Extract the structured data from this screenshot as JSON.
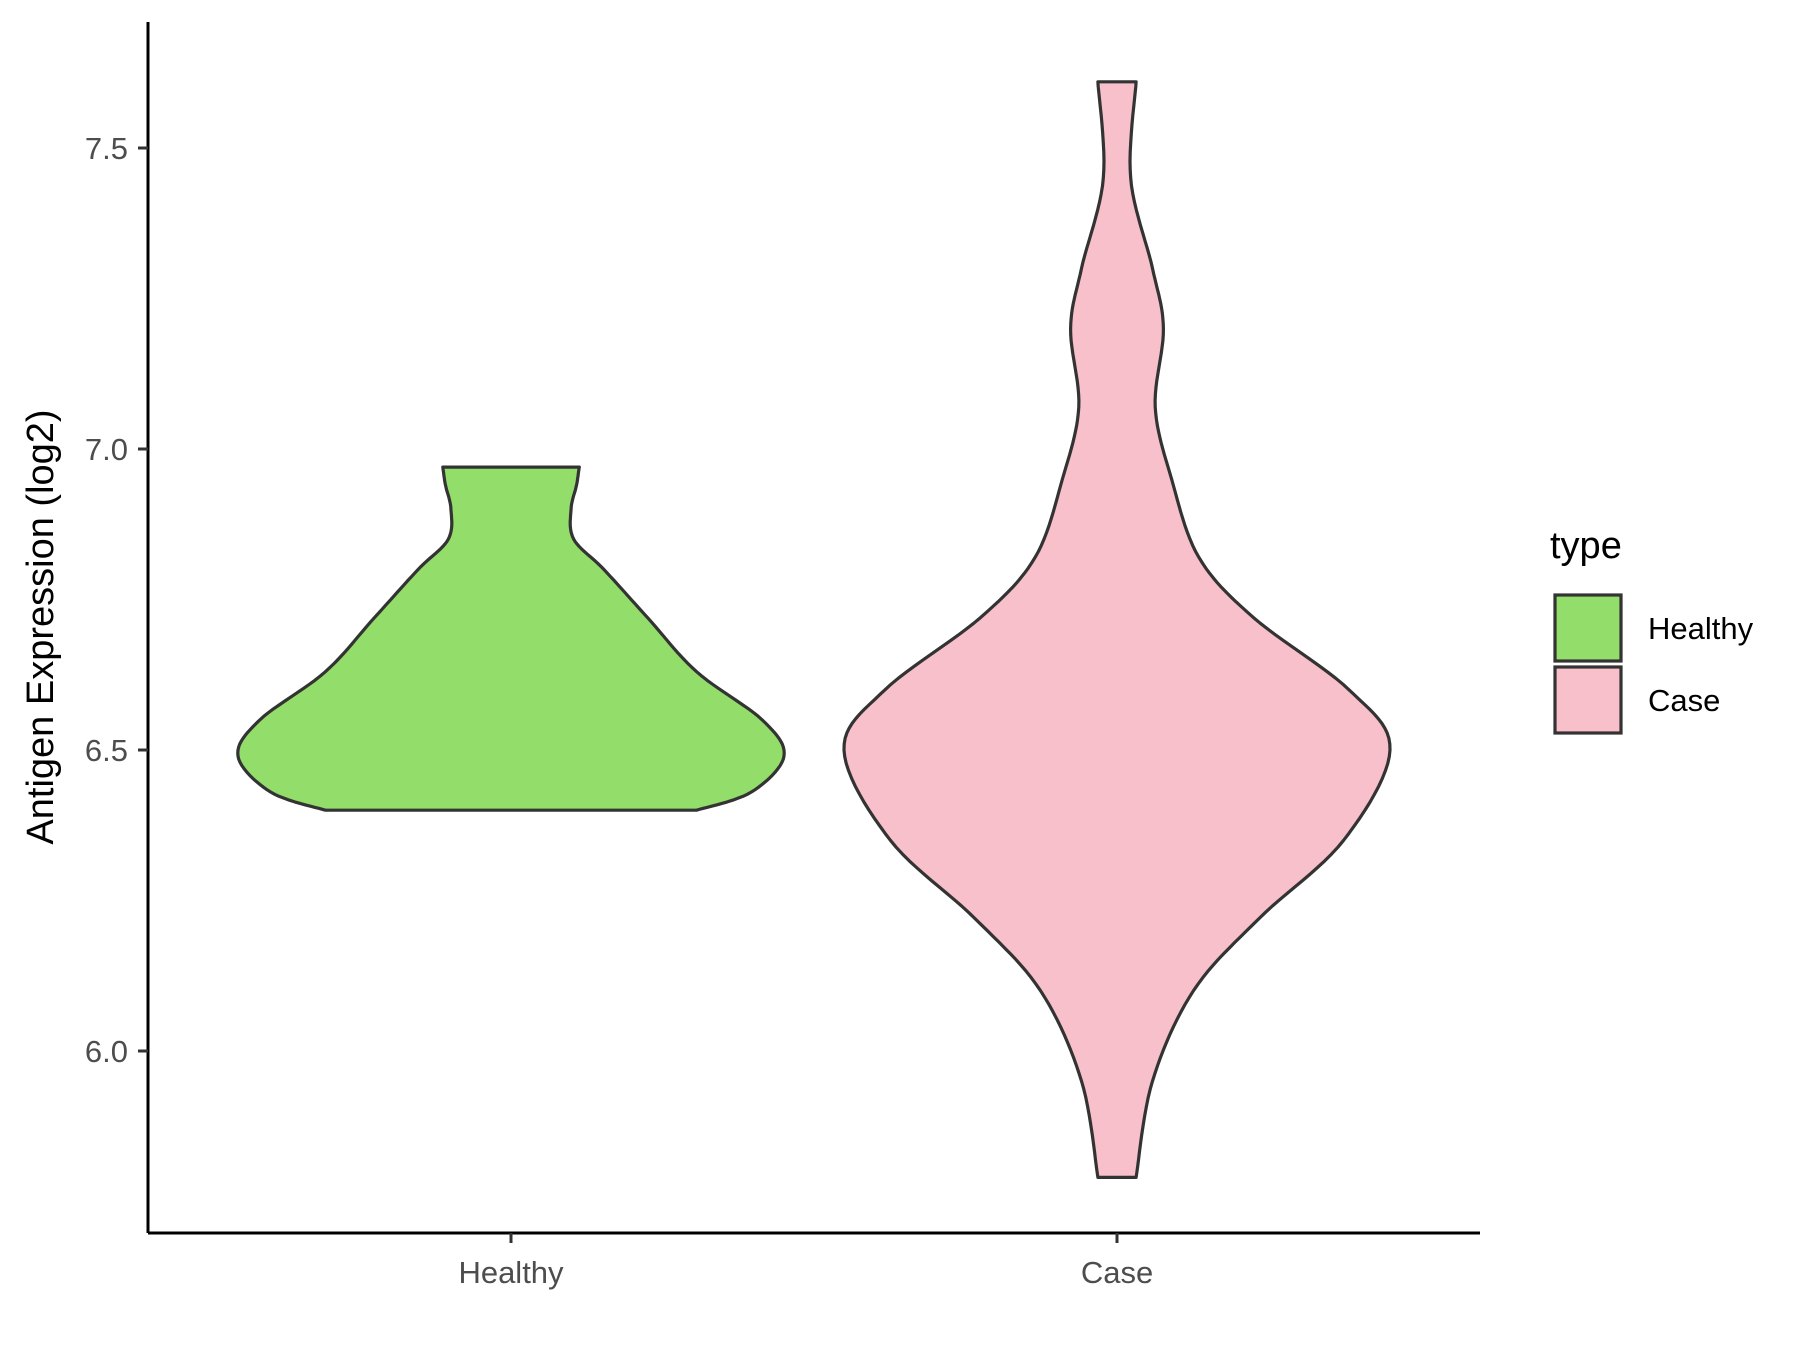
{
  "chart_data": {
    "type": "violin",
    "ylabel": "Antigen Expression (log2)",
    "xlabel": "",
    "categories": [
      "Healthy",
      "Case"
    ],
    "ylim": [
      5.7,
      7.7
    ],
    "yticks": [
      "6.0",
      "6.5",
      "7.0",
      "7.5"
    ],
    "grid": false,
    "legend": {
      "title": "type",
      "position": "right",
      "entries": [
        "Healthy",
        "Case"
      ]
    },
    "series": [
      {
        "name": "Healthy",
        "color": "#93dd6a",
        "y_min": 6.4,
        "y_max": 6.97,
        "density_profile": [
          [
            6.4,
            0.68
          ],
          [
            6.43,
            0.88
          ],
          [
            6.49,
            1.0
          ],
          [
            6.55,
            0.92
          ],
          [
            6.63,
            0.68
          ],
          [
            6.72,
            0.5
          ],
          [
            6.8,
            0.34
          ],
          [
            6.85,
            0.23
          ],
          [
            6.9,
            0.22
          ],
          [
            6.94,
            0.24
          ],
          [
            6.97,
            0.25
          ]
        ]
      },
      {
        "name": "Case",
        "color": "#f7c0cb",
        "y_min": 5.79,
        "y_max": 7.61,
        "density_profile": [
          [
            5.79,
            0.07
          ],
          [
            5.95,
            0.13
          ],
          [
            6.1,
            0.28
          ],
          [
            6.22,
            0.52
          ],
          [
            6.35,
            0.83
          ],
          [
            6.5,
            1.0
          ],
          [
            6.6,
            0.85
          ],
          [
            6.72,
            0.5
          ],
          [
            6.82,
            0.3
          ],
          [
            6.95,
            0.2
          ],
          [
            7.07,
            0.14
          ],
          [
            7.2,
            0.17
          ],
          [
            7.3,
            0.13
          ],
          [
            7.45,
            0.05
          ],
          [
            7.61,
            0.07
          ]
        ]
      }
    ]
  }
}
